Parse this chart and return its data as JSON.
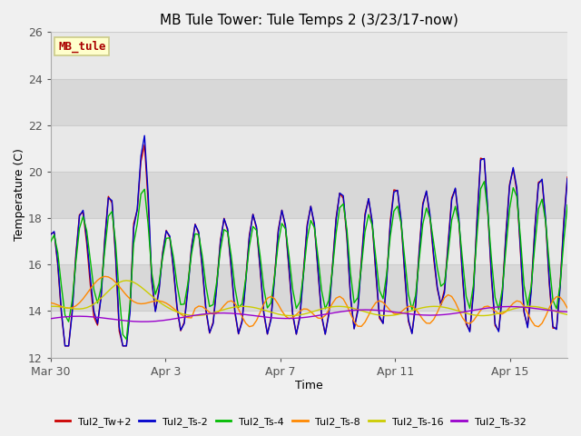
{
  "title": "MB Tule Tower: Tule Temps 2 (3/23/17-now)",
  "xlabel": "Time",
  "ylabel": "Temperature (C)",
  "ylim": [
    12,
    26
  ],
  "yticks": [
    12,
    14,
    16,
    18,
    20,
    22,
    24,
    26
  ],
  "bg_color": "#f0f0f0",
  "plot_bg_bands": [
    {
      "ymin": 12,
      "ymax": 14,
      "color": "#e8e8e8"
    },
    {
      "ymin": 14,
      "ymax": 16,
      "color": "#d8d8d8"
    },
    {
      "ymin": 16,
      "ymax": 18,
      "color": "#e8e8e8"
    },
    {
      "ymin": 18,
      "ymax": 20,
      "color": "#d8d8d8"
    },
    {
      "ymin": 20,
      "ymax": 22,
      "color": "#e8e8e8"
    },
    {
      "ymin": 22,
      "ymax": 24,
      "color": "#d8d8d8"
    },
    {
      "ymin": 24,
      "ymax": 26,
      "color": "#e8e8e8"
    }
  ],
  "grid_color": "#cccccc",
  "series": [
    {
      "label": "Tul2_Tw+2",
      "color": "#cc0000"
    },
    {
      "label": "Tul2_Ts-2",
      "color": "#0000cc"
    },
    {
      "label": "Tul2_Ts-4",
      "color": "#00bb00"
    },
    {
      "label": "Tul2_Ts-8",
      "color": "#ff8800"
    },
    {
      "label": "Tul2_Ts-16",
      "color": "#cccc00"
    },
    {
      "label": "Tul2_Ts-32",
      "color": "#9900cc"
    }
  ],
  "xtick_vals": [
    0,
    4,
    8,
    12,
    16
  ],
  "xtick_labels": [
    "Mar 30",
    "Apr 3",
    "Apr 7",
    "Apr 11",
    "Apr 15"
  ],
  "annotation_text": "MB_tule",
  "annotation_color": "#aa0000",
  "annotation_bg": "#ffffcc",
  "annotation_border": "#cccc88",
  "n_days": 18,
  "pts_per_day": 8
}
